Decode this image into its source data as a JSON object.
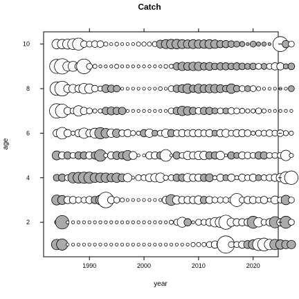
{
  "chart_data": {
    "type": "scatter",
    "title": "Catch",
    "xlabel": "year",
    "ylabel": "age",
    "xlim": [
      1981.6,
      2024.6
    ],
    "ylim": [
      0.45,
      10.55
    ],
    "xticks": [
      1990,
      2000,
      2010,
      2020
    ],
    "yticks": [
      2,
      4,
      6,
      8,
      10
    ],
    "grid": false,
    "legend": "none",
    "colors": {
      "positive": "#ffffff",
      "negative": "#aaaaaa",
      "stroke": "#000000"
    },
    "series": [
      {
        "age": 10,
        "start_year": 1984,
        "residuals": [
          0.5,
          0.5,
          0.55,
          0.65,
          0.8,
          0.25,
          0.2,
          0.25,
          0.25,
          0.1,
          0.05,
          0.08,
          0.05,
          0.05,
          0.05,
          0.1,
          0.1,
          0.1,
          0.15,
          -0.35,
          -0.45,
          -0.5,
          -0.5,
          -0.45,
          -0.4,
          -0.45,
          -0.4,
          -0.4,
          -0.45,
          -0.4,
          -0.3,
          -0.3,
          -0.25,
          -0.2,
          -0.15,
          -0.05,
          -0.2,
          -0.1,
          -0.1,
          -0.05,
          -0.05,
          1.25,
          -0.3,
          0.2
        ]
      },
      {
        "age": 9,
        "start_year": 1984,
        "residuals": [
          1.1,
          1.3,
          0.5,
          0.55,
          0.3,
          1.2,
          0.2,
          0.1,
          0.05,
          0.05,
          0.05,
          0.1,
          0.05,
          0.05,
          0.05,
          0.05,
          0.05,
          0.05,
          0.05,
          0.05,
          0.08,
          0.1,
          -0.3,
          -0.4,
          -0.35,
          -0.4,
          -0.4,
          -0.3,
          -0.35,
          -0.25,
          -0.3,
          -0.3,
          -0.25,
          -0.3,
          -0.25,
          -0.2,
          -0.25,
          0.2,
          -0.2,
          0.2,
          0.3,
          0.3,
          -0.15,
          -0.25
        ]
      },
      {
        "age": 8,
        "start_year": 1984,
        "residuals": [
          1.0,
          1.2,
          0.35,
          0.4,
          0.3,
          0.6,
          0.5,
          0.25,
          0.15,
          -0.35,
          -0.3,
          -0.25,
          0.05,
          0.05,
          0.05,
          0.05,
          0.05,
          0.05,
          0.05,
          0.08,
          0.05,
          0.2,
          -0.3,
          -0.35,
          -0.5,
          -0.3,
          -0.45,
          -0.35,
          -0.4,
          -0.4,
          -0.35,
          -0.25,
          -0.5,
          -0.25,
          0.2,
          -0.2,
          0.2,
          0.1,
          0.05,
          0.05,
          0.05,
          0.05,
          0.05,
          -0.2
        ]
      },
      {
        "age": 7,
        "start_year": 1984,
        "residuals": [
          1.15,
          1.0,
          0.3,
          0.2,
          0.6,
          0.3,
          0.2,
          0.1,
          0.1,
          -0.3,
          -0.35,
          -0.3,
          -0.3,
          0.05,
          0.05,
          0.05,
          0.05,
          0.05,
          0.05,
          0.05,
          0.05,
          0.2,
          -0.3,
          -0.5,
          -0.4,
          -0.3,
          0.25,
          -0.3,
          -0.3,
          -0.2,
          0.2,
          -0.2,
          0.25,
          0.2,
          0.15,
          0.1,
          0.1,
          0.2,
          0.1,
          0.05,
          0.05,
          0.05,
          0.05,
          0.05
        ]
      },
      {
        "age": 6,
        "start_year": 1984,
        "residuals": [
          0.3,
          0.75,
          0.3,
          0.1,
          0.3,
          0.6,
          0.3,
          0.55,
          -0.7,
          -0.5,
          0.4,
          -0.4,
          0.25,
          0.3,
          0.15,
          0.1,
          -0.3,
          0.4,
          -0.2,
          0.2,
          0.4,
          -0.3,
          0.25,
          0.3,
          0.25,
          0.3,
          0.3,
          0.25,
          0.3,
          -0.2,
          0.3,
          0.35,
          0.2,
          0.3,
          0.3,
          0.25,
          0.1,
          0.2,
          0.2,
          0.25,
          0.2,
          0.25,
          0.15,
          0.1
        ]
      },
      {
        "age": 5,
        "start_year": 1984,
        "residuals": [
          -0.45,
          0.3,
          -0.3,
          0.2,
          -0.3,
          -0.3,
          0.3,
          -0.3,
          -0.75,
          0.1,
          0.3,
          -0.35,
          -0.3,
          -0.55,
          0.35,
          0.05,
          0.05,
          0.3,
          0.3,
          -0.3,
          0.75,
          0.05,
          -0.3,
          0.2,
          0.4,
          0.3,
          0.4,
          0.4,
          -0.3,
          -0.3,
          0.4,
          0.05,
          -0.3,
          -0.2,
          0.3,
          0.25,
          0.2,
          -0.3,
          -0.3,
          0.2,
          0.2,
          0.2,
          0.6,
          0.1
        ]
      },
      {
        "age": 4,
        "start_year": 1984,
        "residuals": [
          -0.25,
          -0.3,
          0.2,
          -0.6,
          -0.65,
          -0.7,
          -0.7,
          -0.5,
          -0.5,
          -0.5,
          -0.4,
          -0.5,
          -0.35,
          0.4,
          0.05,
          0.2,
          0.2,
          0.35,
          0.4,
          0.5,
          0.15,
          0.2,
          -0.3,
          -0.3,
          0.4,
          0.3,
          0.3,
          -0.3,
          -0.35,
          0.1,
          0.3,
          -0.2,
          0.3,
          0.1,
          0.3,
          0.2,
          0.3,
          -0.2,
          0.2,
          0.25,
          0.3,
          0.4,
          0.8,
          1.0
        ]
      },
      {
        "age": 3,
        "start_year": 1984,
        "residuals": [
          -0.55,
          -0.45,
          0.3,
          0.3,
          0.2,
          0.2,
          0.3,
          -0.3,
          -0.5,
          1.35,
          0.3,
          0.2,
          0.1,
          0.05,
          0.05,
          0.05,
          0.05,
          0.05,
          0.05,
          0.05,
          0.3,
          -0.65,
          0.4,
          0.3,
          0.3,
          0.3,
          0.4,
          -0.3,
          0.3,
          0.2,
          0.2,
          0.2,
          0.2,
          0.95,
          0.2,
          0.3,
          0.3,
          0.2,
          0.3,
          0.1,
          0.35,
          0.2,
          -0.5,
          0.2
        ]
      },
      {
        "age": 2,
        "start_year": 1984,
        "residuals": [
          -0.1,
          -1.0,
          0.05,
          0.05,
          0.05,
          0.05,
          0.05,
          0.05,
          0.05,
          0.05,
          0.05,
          0.05,
          0.05,
          0.05,
          0.05,
          0.05,
          0.05,
          0.05,
          0.05,
          0.05,
          0.05,
          0.1,
          0.2,
          0.55,
          -0.3,
          0.05,
          0.2,
          0.2,
          0.3,
          0.5,
          0.6,
          1.1,
          0.4,
          0.3,
          0.3,
          0.3,
          -0.8,
          0.5,
          0.2,
          0.3,
          -0.7,
          0.3,
          -0.8,
          0.2
        ]
      },
      {
        "age": 1,
        "start_year": 1984,
        "residuals": [
          -0.6,
          -0.7,
          0.05,
          0.05,
          0.05,
          0.05,
          0.05,
          0.05,
          0.05,
          0.05,
          0.05,
          0.05,
          0.05,
          0.05,
          0.05,
          0.05,
          0.05,
          0.05,
          0.05,
          0.05,
          0.05,
          0.05,
          0.05,
          0.05,
          0.05,
          0.1,
          0.1,
          0.1,
          0.2,
          0.3,
          0.3,
          1.65,
          0.2,
          0.2,
          0.3,
          -0.35,
          -0.5,
          0.8,
          0.9,
          0.6,
          -0.6,
          -0.5,
          -0.4,
          -0.4
        ]
      }
    ]
  }
}
